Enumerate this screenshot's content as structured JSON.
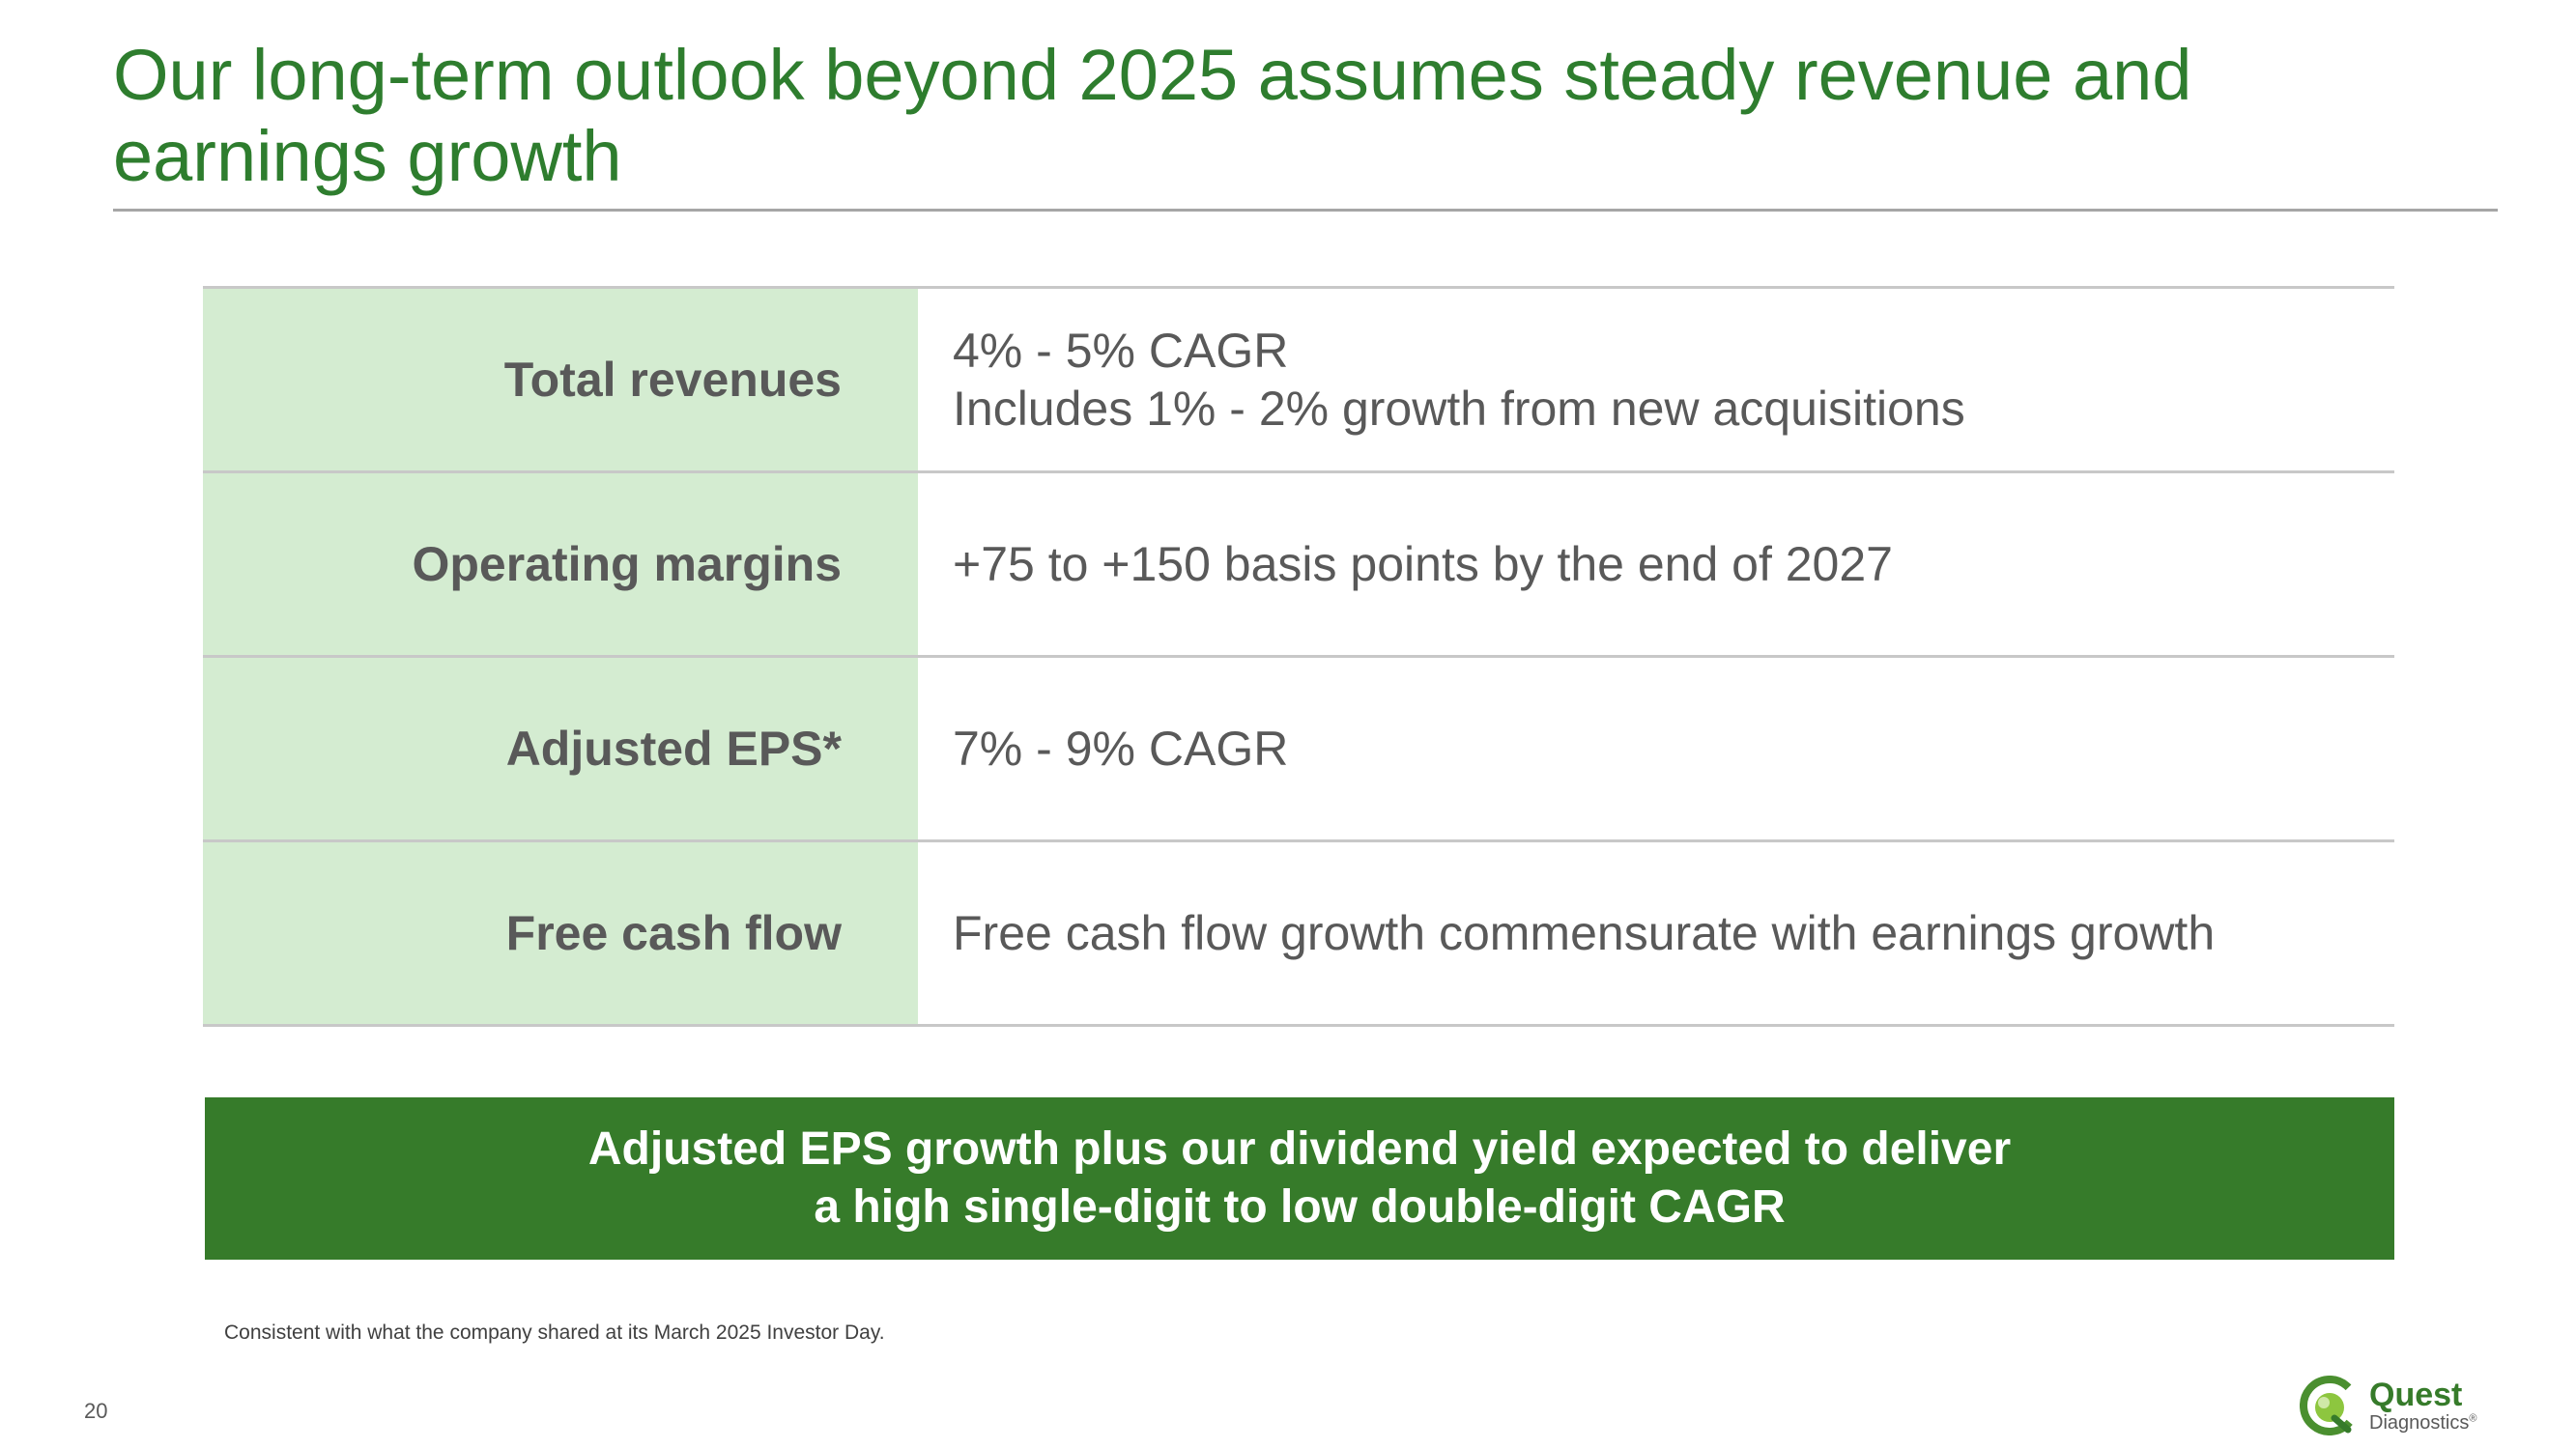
{
  "slide": {
    "title": "Our long-term outlook beyond 2025 assumes steady revenue and earnings growth",
    "page_number": "20",
    "footnote": "Consistent with what the company shared at its March 2025 Investor Day."
  },
  "outlook_rows": [
    {
      "label": "Total revenues",
      "lines": [
        "4% - 5% CAGR",
        "Includes 1% - 2% growth from new acquisitions"
      ]
    },
    {
      "label": "Operating margins",
      "lines": [
        "+75 to +150 basis points by the end of 2027"
      ]
    },
    {
      "label": "Adjusted EPS*",
      "lines": [
        "7% - 9% CAGR"
      ]
    },
    {
      "label": "Free cash flow",
      "lines": [
        "Free cash flow growth commensurate with earnings growth"
      ]
    }
  ],
  "callout": {
    "line1": "Adjusted EPS growth plus our dividend yield expected to deliver",
    "line2": "a high single-digit to low double-digit CAGR"
  },
  "logo": {
    "brand_line1": "Quest",
    "brand_line2": "Diagnostics",
    "trademark": "®",
    "icon": "quest-logo-icon"
  },
  "colors": {
    "title_green": "#2e7d2e",
    "label_bg": "#d4ecd1",
    "banner_green": "#367b2a",
    "text_gray": "#595959"
  }
}
